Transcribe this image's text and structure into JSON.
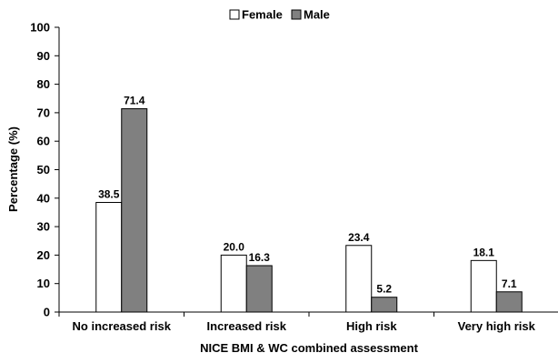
{
  "chart_data": {
    "type": "bar",
    "xlabel": "NICE BMI & WC combined assessment",
    "ylabel": "Percentage (%)",
    "ylim": [
      0,
      100
    ],
    "yticks": [
      0,
      10,
      20,
      30,
      40,
      50,
      60,
      70,
      80,
      90,
      100
    ],
    "grid": false,
    "legend_position": "top",
    "categories": [
      "No increased risk",
      "Increased risk",
      "High risk",
      "Very high risk"
    ],
    "series": [
      {
        "name": "Female",
        "values": [
          38.5,
          20.0,
          23.4,
          18.1
        ],
        "labels": [
          "38.5",
          "20.0",
          "23.4",
          "18.1"
        ],
        "color": "#ffffff"
      },
      {
        "name": "Male",
        "values": [
          71.4,
          16.3,
          5.2,
          7.1
        ],
        "labels": [
          "71.4",
          "16.3",
          "5.2",
          "7.1"
        ],
        "color": "#808080"
      }
    ]
  }
}
